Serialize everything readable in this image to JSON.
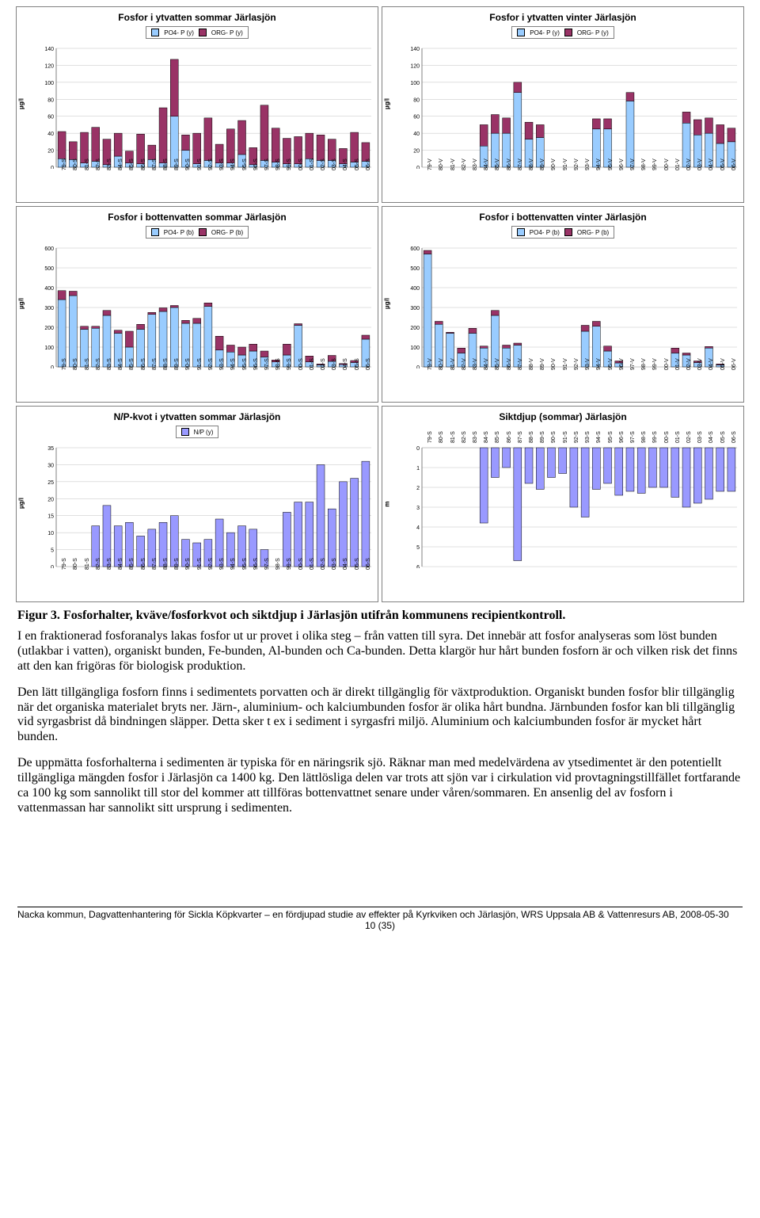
{
  "colors": {
    "po4": "#99ccff",
    "org": "#993366",
    "np": "#9999ff",
    "border": "#000000",
    "grid": "#c0c0c0",
    "axis": "#808080"
  },
  "years_s": [
    "79-S",
    "80-S",
    "81-S",
    "82-S",
    "83-S",
    "84-S",
    "85-S",
    "86-S",
    "87-S",
    "88-S",
    "89-S",
    "90-S",
    "91-S",
    "92-S",
    "93-S",
    "94-S",
    "95-S",
    "96-S",
    "97-S",
    "98-S",
    "99-S",
    "00-S",
    "01-S",
    "02-S",
    "03-S",
    "04-S",
    "05-S",
    "06-S"
  ],
  "years_v": [
    "79-V",
    "80-V",
    "81-V",
    "82-V",
    "83-V",
    "84-V",
    "85-V",
    "86-V",
    "87-V",
    "88-V",
    "89-V",
    "90-V",
    "91-V",
    "92-V",
    "93-V",
    "94-V",
    "95-V",
    "96-V",
    "97-V",
    "98-V",
    "99-V",
    "00-V",
    "01-V",
    "02-V",
    "03-V",
    "04-V",
    "05-V",
    "06-V"
  ],
  "p1": {
    "title": "Fosfor i ytvatten sommar Järlasjön",
    "ylabel": "µg/l",
    "legend": [
      {
        "label": "PO4- P   (y)",
        "color": "po4"
      },
      {
        "label": "ORG- P   (y)",
        "color": "org"
      }
    ],
    "ymax": 140,
    "ystep": 20,
    "cats_key": "years_s",
    "stacked": true,
    "po4": [
      10,
      9,
      5,
      7,
      3,
      13,
      5,
      4,
      9,
      5,
      60,
      20,
      4,
      8,
      5,
      5,
      15,
      3,
      8,
      6,
      4,
      4,
      10,
      8,
      8,
      4,
      6,
      7
    ],
    "org": [
      32,
      21,
      36,
      40,
      30,
      27,
      14,
      35,
      17,
      65,
      67,
      18,
      36,
      50,
      22,
      40,
      40,
      20,
      65,
      40,
      30,
      32,
      30,
      30,
      25,
      18,
      35,
      22
    ]
  },
  "p2": {
    "title": "Fosfor i ytvatten vinter Järlasjön",
    "ylabel": "µg/l",
    "legend": [
      {
        "label": "PO4- P   (y)",
        "color": "po4"
      },
      {
        "label": "ORG- P   (y)",
        "color": "org"
      }
    ],
    "ymax": 140,
    "ystep": 20,
    "cats_key": "years_v",
    "stacked": true,
    "po4": [
      0,
      0,
      0,
      0,
      0,
      25,
      40,
      40,
      88,
      33,
      35,
      0,
      0,
      0,
      0,
      45,
      45,
      0,
      78,
      0,
      0,
      0,
      0,
      52,
      38,
      40,
      28,
      30
    ],
    "org": [
      0,
      0,
      0,
      0,
      0,
      25,
      22,
      18,
      12,
      20,
      15,
      0,
      0,
      0,
      0,
      12,
      12,
      0,
      10,
      0,
      0,
      0,
      0,
      13,
      18,
      18,
      22,
      16
    ]
  },
  "p3": {
    "title": "Fosfor i bottenvatten sommar Järlasjön",
    "ylabel": "µg/l",
    "legend": [
      {
        "label": "PO4- P   (b)",
        "color": "po4"
      },
      {
        "label": "ORG- P   (b)",
        "color": "org"
      }
    ],
    "ymax": 600,
    "ystep": 100,
    "cats_key": "years_s",
    "stacked": true,
    "po4": [
      340,
      360,
      190,
      195,
      260,
      170,
      100,
      190,
      265,
      280,
      300,
      220,
      220,
      305,
      85,
      75,
      60,
      80,
      50,
      25,
      60,
      210,
      25,
      10,
      28,
      12,
      22,
      140
    ],
    "org": [
      45,
      22,
      15,
      10,
      25,
      15,
      80,
      25,
      10,
      18,
      10,
      15,
      25,
      18,
      70,
      35,
      40,
      35,
      30,
      10,
      55,
      8,
      30,
      5,
      30,
      5,
      10,
      20
    ]
  },
  "p4": {
    "title": "Fosfor i bottenvatten vinter Järlasjön",
    "ylabel": "µg/l",
    "legend": [
      {
        "label": "PO4- P   (b)",
        "color": "po4"
      },
      {
        "label": "ORG- P   (b)",
        "color": "org"
      }
    ],
    "ymax": 600,
    "ystep": 100,
    "cats_key": "years_v",
    "stacked": true,
    "po4": [
      570,
      215,
      170,
      70,
      170,
      95,
      260,
      95,
      110,
      0,
      0,
      0,
      0,
      0,
      180,
      205,
      80,
      20,
      0,
      0,
      0,
      0,
      70,
      60,
      22,
      95,
      10,
      0
    ],
    "org": [
      18,
      15,
      5,
      25,
      25,
      10,
      25,
      15,
      10,
      0,
      0,
      0,
      0,
      0,
      30,
      25,
      25,
      10,
      0,
      0,
      0,
      0,
      25,
      10,
      8,
      8,
      5,
      0
    ]
  },
  "p5": {
    "title": "N/P-kvot i ytvatten sommar Järlasjön",
    "ylabel": "µg/l",
    "legend": [
      {
        "label": "N/P (y)",
        "color": "np"
      }
    ],
    "ymax": 35,
    "ystep": 5,
    "cats_key": "years_s",
    "stacked": false,
    "vals": [
      0,
      0,
      0,
      12,
      18,
      12,
      13,
      9,
      11,
      13,
      15,
      8,
      7,
      8,
      14,
      10,
      12,
      11,
      5,
      0,
      16,
      19,
      19,
      30,
      17,
      25,
      26,
      31
    ]
  },
  "p6": {
    "title": "Siktdjup (sommar) Järlasjön",
    "ylabel": "m",
    "ymax": 6,
    "ystep": 1,
    "cats_key": "years_s",
    "invert": true,
    "stacked": false,
    "vals": [
      0,
      0,
      0,
      0,
      0,
      3.8,
      1.5,
      1.0,
      5.7,
      1.8,
      2.1,
      1.5,
      1.3,
      3.0,
      3.5,
      2.1,
      1.8,
      2.4,
      2.2,
      2.3,
      2.0,
      2.0,
      2.5,
      3.0,
      2.8,
      2.6,
      2.2,
      2.2
    ]
  },
  "caption_prefix": "Figur 3. ",
  "caption_rest": "Fosforhalter, kväve/fosforkvot och siktdjup i Järlasjön utifrån kommunens recipientkontroll.",
  "paragraphs": [
    "I en fraktionerad fosforanalys lakas fosfor ut ur provet i olika steg – från vatten till syra. Det innebär att fosfor analyseras som löst bunden (utlakbar i vatten), organiskt bunden, Fe-bunden, Al-bunden och Ca-bunden. Detta klargör hur hårt bunden fosforn är och vilken risk det finns att den kan frigöras för biologisk produktion.",
    "Den lätt tillgängliga fosforn finns i sedimentets porvatten och är direkt tillgänglig för växtproduktion. Organiskt bunden fosfor blir tillgänglig när det organiska materialet bryts ner. Järn-, aluminium- och kalciumbunden fosfor är olika hårt bundna. Järnbunden fosfor kan bli tillgänglig vid syrgasbrist då bindningen släpper. Detta sker t ex i sediment i syrgasfri miljö. Aluminium och kalciumbunden fosfor är mycket hårt bunden.",
    "De uppmätta fosforhalterna i sedimenten är typiska för en näringsrik sjö. Räknar man med medelvärdena av ytsedimentet är den potentiellt tillgängliga mängden fosfor i Järlasjön ca 1400 kg. Den lättlösliga delen var trots att sjön var i cirkulation vid provtagningstillfället fortfarande ca 100 kg som sannolikt till stor del kommer att tillföras bottenvattnet senare under våren/sommaren. En ansenlig del av fosforn i vattenmassan har sannolikt sitt ursprung i sedimenten."
  ],
  "footer_line1": "Nacka kommun, Dagvattenhantering för Sickla Köpkvarter – en fördjupad studie av effekter på Kyrkviken och Järlasjön, WRS Uppsala AB & Vattenresurs AB, 2008-05-30",
  "page_num": "10 (35)"
}
